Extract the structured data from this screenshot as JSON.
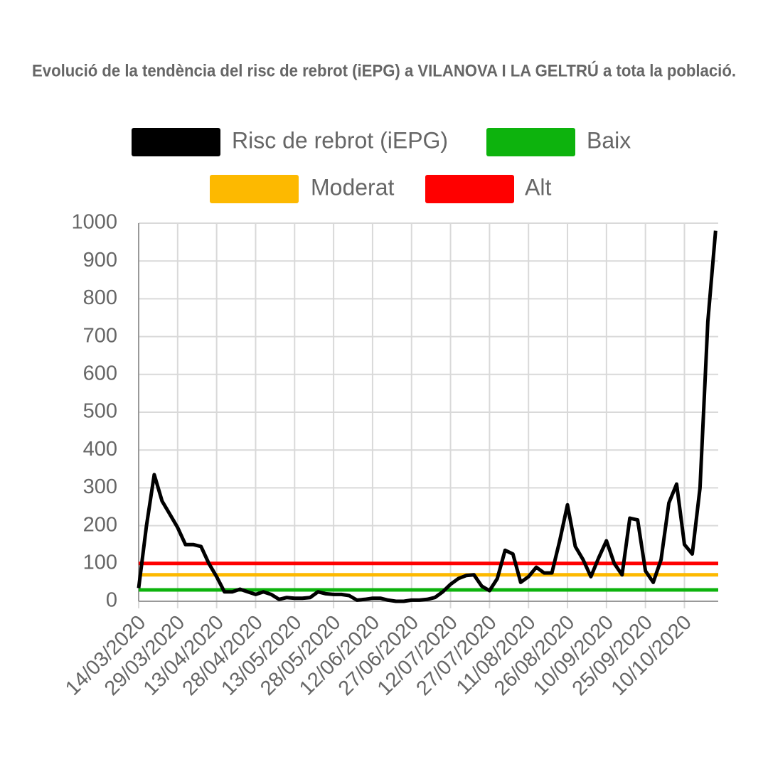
{
  "chart_data": {
    "type": "line",
    "title": "Evolució de la tendència del risc de rebrot (iEPG) a VILANOVA I LA GELTRÚ a tota la població.",
    "x": [
      "14/03/2020",
      "17/03/2020",
      "20/03/2020",
      "23/03/2020",
      "26/03/2020",
      "29/03/2020",
      "01/04/2020",
      "04/04/2020",
      "07/04/2020",
      "10/04/2020",
      "13/04/2020",
      "16/04/2020",
      "19/04/2020",
      "22/04/2020",
      "25/04/2020",
      "28/04/2020",
      "01/05/2020",
      "04/05/2020",
      "07/05/2020",
      "10/05/2020",
      "13/05/2020",
      "16/05/2020",
      "19/05/2020",
      "22/05/2020",
      "25/05/2020",
      "28/05/2020",
      "31/05/2020",
      "03/06/2020",
      "06/06/2020",
      "09/06/2020",
      "12/06/2020",
      "15/06/2020",
      "18/06/2020",
      "21/06/2020",
      "24/06/2020",
      "27/06/2020",
      "30/06/2020",
      "03/07/2020",
      "06/07/2020",
      "09/07/2020",
      "12/07/2020",
      "15/07/2020",
      "18/07/2020",
      "21/07/2020",
      "24/07/2020",
      "27/07/2020",
      "30/07/2020",
      "02/08/2020",
      "05/08/2020",
      "08/08/2020",
      "11/08/2020",
      "14/08/2020",
      "17/08/2020",
      "20/08/2020",
      "23/08/2020",
      "26/08/2020",
      "29/08/2020",
      "01/09/2020",
      "04/09/2020",
      "07/09/2020",
      "10/09/2020",
      "13/09/2020",
      "16/09/2020",
      "19/09/2020",
      "22/09/2020",
      "25/09/2020",
      "28/09/2020",
      "01/10/2020",
      "04/10/2020",
      "07/10/2020",
      "10/10/2020",
      "13/10/2020",
      "16/10/2020",
      "19/10/2020",
      "22/10/2020"
    ],
    "series": [
      {
        "name": "Risc de rebrot (iEPG)",
        "color": "#000000",
        "values": [
          35,
          200,
          335,
          265,
          230,
          195,
          150,
          150,
          145,
          100,
          65,
          25,
          25,
          32,
          25,
          18,
          25,
          18,
          5,
          10,
          8,
          8,
          10,
          25,
          20,
          18,
          18,
          15,
          3,
          5,
          8,
          8,
          3,
          0,
          0,
          3,
          3,
          5,
          10,
          25,
          45,
          60,
          68,
          70,
          40,
          28,
          60,
          135,
          125,
          50,
          65,
          90,
          75,
          75,
          160,
          255,
          145,
          110,
          65,
          115,
          160,
          100,
          70,
          220,
          215,
          80,
          50,
          110,
          260,
          310,
          150,
          125,
          300,
          740,
          980
        ]
      }
    ],
    "reference_lines": [
      {
        "name": "Baix",
        "color": "#0db30d",
        "value": 30
      },
      {
        "name": "Moderat",
        "color": "#fdb900",
        "value": 70
      },
      {
        "name": "Alt",
        "color": "#ff0000",
        "value": 100
      }
    ],
    "xlim": [
      "14/03/2020",
      "23/10/2020"
    ],
    "xticks": [
      "14/03/2020",
      "29/03/2020",
      "13/04/2020",
      "28/04/2020",
      "13/05/2020",
      "28/05/2020",
      "12/06/2020",
      "27/06/2020",
      "12/07/2020",
      "27/07/2020",
      "11/08/2020",
      "26/08/2020",
      "10/09/2020",
      "25/09/2020",
      "10/10/2020"
    ],
    "ylim": [
      0,
      1000
    ],
    "yticks": [
      0,
      100,
      200,
      300,
      400,
      500,
      600,
      700,
      800,
      900,
      1000
    ],
    "grid": true
  }
}
